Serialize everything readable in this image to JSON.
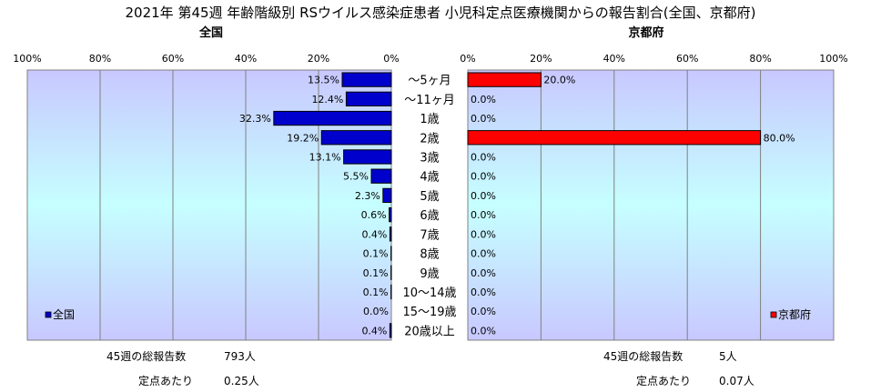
{
  "page": {
    "title": "2021年 第45週 年齢階級別 RSウイルス感染症患者 小児科定点医療機関からの報告割合(全国、京都府)"
  },
  "chart_data": [
    {
      "type": "bar",
      "orientation": "horizontal",
      "direction": "right-to-left",
      "title": "全国",
      "categories": [
        "～5ヶ月",
        "～11ヶ月",
        "1歳",
        "2歳",
        "3歳",
        "4歳",
        "5歳",
        "6歳",
        "7歳",
        "8歳",
        "9歳",
        "10～14歳",
        "15～19歳",
        "20歳以上"
      ],
      "series": [
        {
          "name": "全国",
          "color": "#0000cc",
          "values": [
            13.5,
            12.4,
            32.3,
            19.2,
            13.1,
            5.5,
            2.3,
            0.6,
            0.4,
            0.1,
            0.1,
            0.1,
            0.0,
            0.4
          ],
          "labels": [
            "13.5%",
            "12.4%",
            "32.3%",
            "19.2%",
            "13.1%",
            "5.5%",
            "2.3%",
            "0.6%",
            "0.4%",
            "0.1%",
            "0.1%",
            "0.1%",
            "0.0%",
            "0.4%"
          ]
        }
      ],
      "xlim": [
        0,
        100
      ],
      "ticks": [
        "100%",
        "80%",
        "60%",
        "40%",
        "20%",
        "0%"
      ],
      "grid": true,
      "legend": "bottom-left",
      "stats": {
        "total_label": "45週の総報告数",
        "total_value": "793人",
        "per_label": "定点あたり",
        "per_value": "0.25人"
      }
    },
    {
      "type": "bar",
      "orientation": "horizontal",
      "direction": "left-to-right",
      "title": "京都府",
      "categories": [
        "～5ヶ月",
        "～11ヶ月",
        "1歳",
        "2歳",
        "3歳",
        "4歳",
        "5歳",
        "6歳",
        "7歳",
        "8歳",
        "9歳",
        "10～14歳",
        "15～19歳",
        "20歳以上"
      ],
      "series": [
        {
          "name": "京都府",
          "color": "#ff0000",
          "values": [
            20.0,
            0.0,
            0.0,
            80.0,
            0.0,
            0.0,
            0.0,
            0.0,
            0.0,
            0.0,
            0.0,
            0.0,
            0.0,
            0.0
          ],
          "labels": [
            "20.0%",
            "0.0%",
            "0.0%",
            "80.0%",
            "0.0%",
            "0.0%",
            "0.0%",
            "0.0%",
            "0.0%",
            "0.0%",
            "0.0%",
            "0.0%",
            "0.0%",
            "0.0%"
          ]
        }
      ],
      "xlim": [
        0,
        100
      ],
      "ticks": [
        "0%",
        "20%",
        "40%",
        "60%",
        "80%",
        "100%"
      ],
      "grid": true,
      "legend": "bottom-right",
      "stats": {
        "total_label": "45週の総報告数",
        "total_value": "5人",
        "per_label": "定点あたり",
        "per_value": "0.07人"
      }
    }
  ]
}
